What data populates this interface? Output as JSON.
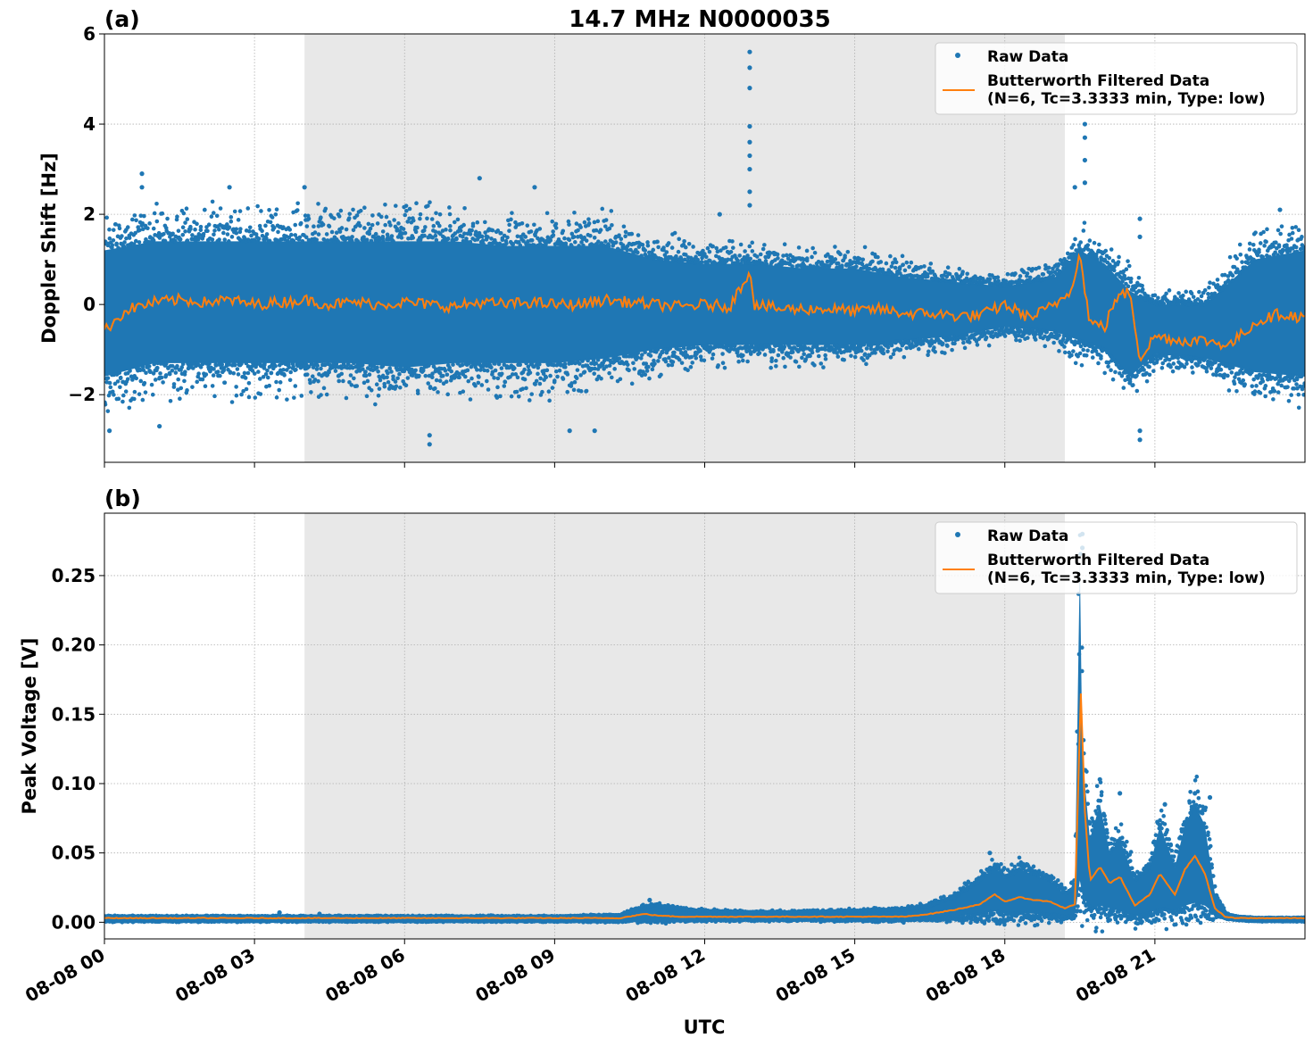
{
  "figure": {
    "title": "14.7 MHz N0000035",
    "xlabel": "UTC"
  },
  "colors": {
    "raw": "#1f77b4",
    "filtered": "#ff7f0e",
    "shade": "#e8e8e8",
    "grid": "#b0b0b0"
  },
  "chart_data": [
    {
      "type": "scatter",
      "panel_label": "(a)",
      "title": "14.7 MHz N0000035",
      "ylabel": "Doppler Shift [Hz]",
      "xlabel": "",
      "x_unit": "hours UTC on 08-08",
      "xlim": [
        0,
        24
      ],
      "ylim": [
        -3.5,
        6
      ],
      "yticks": [
        -2,
        0,
        2,
        4,
        6
      ],
      "ytick_labels": [
        "−2",
        "0",
        "2",
        "4",
        "6"
      ],
      "xticks": [
        0,
        3,
        6,
        9,
        12,
        15,
        18,
        21
      ],
      "xtick_labels": [
        "08-08 00",
        "08-08 03",
        "08-08 06",
        "08-08 09",
        "08-08 12",
        "08-08 15",
        "08-08 18",
        "08-08 21"
      ],
      "grid": true,
      "legend_position": "top-right",
      "shaded_interval": [
        4.0,
        19.2
      ],
      "series": [
        {
          "name": "Raw Data",
          "kind": "scatter",
          "envelope": {
            "x": [
              0,
              1,
              2,
              3,
              4,
              5,
              6,
              7,
              8,
              9,
              10,
              11,
              12,
              13,
              14,
              15,
              16,
              17,
              18,
              19,
              19.5,
              20,
              20.5,
              21,
              22,
              23,
              24
            ],
            "low": [
              -1.6,
              -1.3,
              -1.3,
              -1.3,
              -1.3,
              -1.3,
              -1.4,
              -1.3,
              -1.3,
              -1.3,
              -1.2,
              -1.0,
              -0.9,
              -0.9,
              -0.9,
              -0.9,
              -0.8,
              -0.7,
              -0.5,
              -0.6,
              -0.8,
              -1.0,
              -1.6,
              -1.1,
              -1.2,
              -1.5,
              -1.6
            ],
            "high": [
              1.2,
              1.4,
              1.4,
              1.4,
              1.4,
              1.4,
              1.4,
              1.4,
              1.3,
              1.3,
              1.3,
              1.0,
              0.9,
              0.9,
              0.8,
              0.8,
              0.6,
              0.5,
              0.4,
              0.6,
              1.2,
              0.9,
              0.3,
              0.0,
              0.0,
              1.0,
              1.2
            ]
          },
          "outliers": [
            {
              "x": 0.75,
              "y": 2.9
            },
            {
              "x": 0.75,
              "y": 2.6
            },
            {
              "x": 2.5,
              "y": 2.6
            },
            {
              "x": 4.0,
              "y": 2.6
            },
            {
              "x": 7.5,
              "y": 2.8
            },
            {
              "x": 8.6,
              "y": 2.6
            },
            {
              "x": 1.1,
              "y": -2.7
            },
            {
              "x": 6.5,
              "y": -3.1
            },
            {
              "x": 6.5,
              "y": -2.9
            },
            {
              "x": 9.3,
              "y": -2.8
            },
            {
              "x": 9.8,
              "y": -2.8
            },
            {
              "x": 0.1,
              "y": -2.8
            },
            {
              "x": 12.9,
              "y": 5.6
            },
            {
              "x": 12.9,
              "y": 5.25
            },
            {
              "x": 12.9,
              "y": 4.8
            },
            {
              "x": 12.9,
              "y": 3.95
            },
            {
              "x": 12.9,
              "y": 3.6
            },
            {
              "x": 12.9,
              "y": 3.3
            },
            {
              "x": 12.9,
              "y": 3.0
            },
            {
              "x": 12.9,
              "y": 2.5
            },
            {
              "x": 12.9,
              "y": 2.2
            },
            {
              "x": 19.6,
              "y": 4.0
            },
            {
              "x": 19.6,
              "y": 3.7
            },
            {
              "x": 19.6,
              "y": 3.2
            },
            {
              "x": 19.6,
              "y": 2.7
            },
            {
              "x": 19.4,
              "y": 2.6
            },
            {
              "x": 20.7,
              "y": -3.0
            },
            {
              "x": 20.7,
              "y": -2.8
            },
            {
              "x": 20.7,
              "y": 1.9
            },
            {
              "x": 20.7,
              "y": 1.5
            },
            {
              "x": 23.5,
              "y": 2.1
            },
            {
              "x": 12.3,
              "y": 2.0
            }
          ]
        },
        {
          "name": "Butterworth Filtered Data\n(N=6, Tc=3.3333 min, Type: low)",
          "kind": "line",
          "x": [
            0,
            0.25,
            0.5,
            1,
            1.5,
            2,
            2.5,
            3,
            3.5,
            4,
            4.5,
            5,
            5.5,
            6,
            6.5,
            7,
            7.5,
            8,
            8.5,
            9,
            9.5,
            10,
            10.5,
            11,
            11.5,
            12,
            12.5,
            12.9,
            13,
            13.5,
            14,
            14.5,
            15,
            15.5,
            16,
            16.5,
            17,
            17.5,
            18,
            18.5,
            19,
            19.3,
            19.5,
            19.7,
            20,
            20.2,
            20.5,
            20.7,
            21,
            21.5,
            22,
            22.5,
            23,
            23.5,
            24
          ],
          "y": [
            -0.6,
            -0.3,
            -0.1,
            0.05,
            0.1,
            0.05,
            0.1,
            0.0,
            0.05,
            0.1,
            0.0,
            0.05,
            0.0,
            0.05,
            0.0,
            -0.05,
            0.05,
            0.0,
            0.05,
            0.0,
            0.0,
            0.1,
            0.05,
            0.0,
            -0.05,
            0.0,
            -0.05,
            0.75,
            0.0,
            -0.1,
            -0.1,
            -0.1,
            -0.15,
            -0.1,
            -0.2,
            -0.2,
            -0.25,
            -0.25,
            0.0,
            -0.3,
            0.0,
            0.3,
            1.1,
            -0.4,
            -0.5,
            0.1,
            0.3,
            -1.2,
            -0.7,
            -0.8,
            -0.8,
            -0.9,
            -0.4,
            -0.2,
            -0.3
          ]
        }
      ]
    },
    {
      "type": "scatter",
      "panel_label": "(b)",
      "title": "",
      "ylabel": "Peak Voltage [V]",
      "xlabel": "UTC",
      "x_unit": "hours UTC on 08-08",
      "xlim": [
        0,
        24
      ],
      "ylim": [
        -0.012,
        0.295
      ],
      "yticks": [
        0.0,
        0.05,
        0.1,
        0.15,
        0.2,
        0.25
      ],
      "ytick_labels": [
        "0.00",
        "0.05",
        "0.10",
        "0.15",
        "0.20",
        "0.25"
      ],
      "xticks": [
        0,
        3,
        6,
        9,
        12,
        15,
        18,
        21
      ],
      "xtick_labels": [
        "08-08 00",
        "08-08 03",
        "08-08 06",
        "08-08 09",
        "08-08 12",
        "08-08 15",
        "08-08 18",
        "08-08 21"
      ],
      "grid": true,
      "legend_position": "top-right",
      "shaded_interval": [
        4.0,
        19.2
      ],
      "series": [
        {
          "name": "Raw Data",
          "kind": "scatter",
          "envelope": {
            "x": [
              0,
              3,
              6,
              9,
              10.3,
              10.6,
              11,
              11.5,
              12,
              13,
              14,
              15,
              16,
              16.5,
              17,
              17.5,
              17.8,
              18,
              18.3,
              18.6,
              18.9,
              19.2,
              19.4,
              19.5,
              19.55,
              19.7,
              19.9,
              20.1,
              20.3,
              20.6,
              20.9,
              21.1,
              21.4,
              21.6,
              21.8,
              22.0,
              22.2,
              22.4,
              22.6,
              23,
              24
            ],
            "low": [
              0.001,
              0.001,
              0.001,
              0.001,
              0.001,
              0.002,
              0.002,
              0.002,
              0.002,
              0.002,
              0.002,
              0.002,
              0.002,
              0.003,
              0.004,
              0.006,
              0.008,
              0.006,
              0.007,
              0.006,
              0.006,
              0.004,
              0.005,
              0.03,
              0.02,
              0.01,
              0.012,
              0.01,
              0.008,
              0.004,
              0.007,
              0.01,
              0.008,
              0.012,
              0.014,
              0.012,
              0.006,
              0.003,
              0.002,
              0.001,
              0.001
            ],
            "high": [
              0.004,
              0.004,
              0.004,
              0.004,
              0.005,
              0.009,
              0.012,
              0.009,
              0.008,
              0.007,
              0.007,
              0.008,
              0.009,
              0.012,
              0.018,
              0.03,
              0.04,
              0.032,
              0.038,
              0.034,
              0.03,
              0.02,
              0.025,
              0.26,
              0.12,
              0.06,
              0.085,
              0.05,
              0.06,
              0.03,
              0.04,
              0.07,
              0.04,
              0.07,
              0.085,
              0.07,
              0.02,
              0.006,
              0.004,
              0.003,
              0.003
            ]
          },
          "outliers": [
            {
              "x": 3.5,
              "y": 0.007
            },
            {
              "x": 4.3,
              "y": 0.006
            },
            {
              "x": 19.55,
              "y": 0.28
            },
            {
              "x": 19.55,
              "y": 0.27
            },
            {
              "x": 19.9,
              "y": 0.103
            },
            {
              "x": 20.3,
              "y": 0.093
            },
            {
              "x": 21.2,
              "y": 0.085
            },
            {
              "x": 21.8,
              "y": 0.093
            },
            {
              "x": 22.1,
              "y": 0.09
            },
            {
              "x": 17.7,
              "y": 0.05
            },
            {
              "x": 10.9,
              "y": 0.016
            }
          ]
        },
        {
          "name": "Butterworth Filtered Data\n(N=6, Tc=3.3333 min, Type: low)",
          "kind": "line",
          "x": [
            0,
            3,
            6,
            9,
            10.3,
            10.8,
            11,
            11.5,
            12,
            13,
            14,
            15,
            16,
            16.5,
            17,
            17.5,
            17.8,
            18,
            18.3,
            18.6,
            18.9,
            19.2,
            19.4,
            19.52,
            19.6,
            19.7,
            19.9,
            20.1,
            20.3,
            20.6,
            20.9,
            21.1,
            21.4,
            21.6,
            21.8,
            22.0,
            22.2,
            22.4,
            22.6,
            23,
            24
          ],
          "y": [
            0.003,
            0.003,
            0.003,
            0.003,
            0.003,
            0.006,
            0.005,
            0.004,
            0.004,
            0.004,
            0.004,
            0.004,
            0.004,
            0.006,
            0.009,
            0.013,
            0.02,
            0.015,
            0.018,
            0.016,
            0.015,
            0.01,
            0.013,
            0.165,
            0.08,
            0.03,
            0.04,
            0.028,
            0.033,
            0.012,
            0.02,
            0.035,
            0.02,
            0.038,
            0.048,
            0.035,
            0.01,
            0.004,
            0.003,
            0.003,
            0.003
          ]
        }
      ]
    }
  ]
}
